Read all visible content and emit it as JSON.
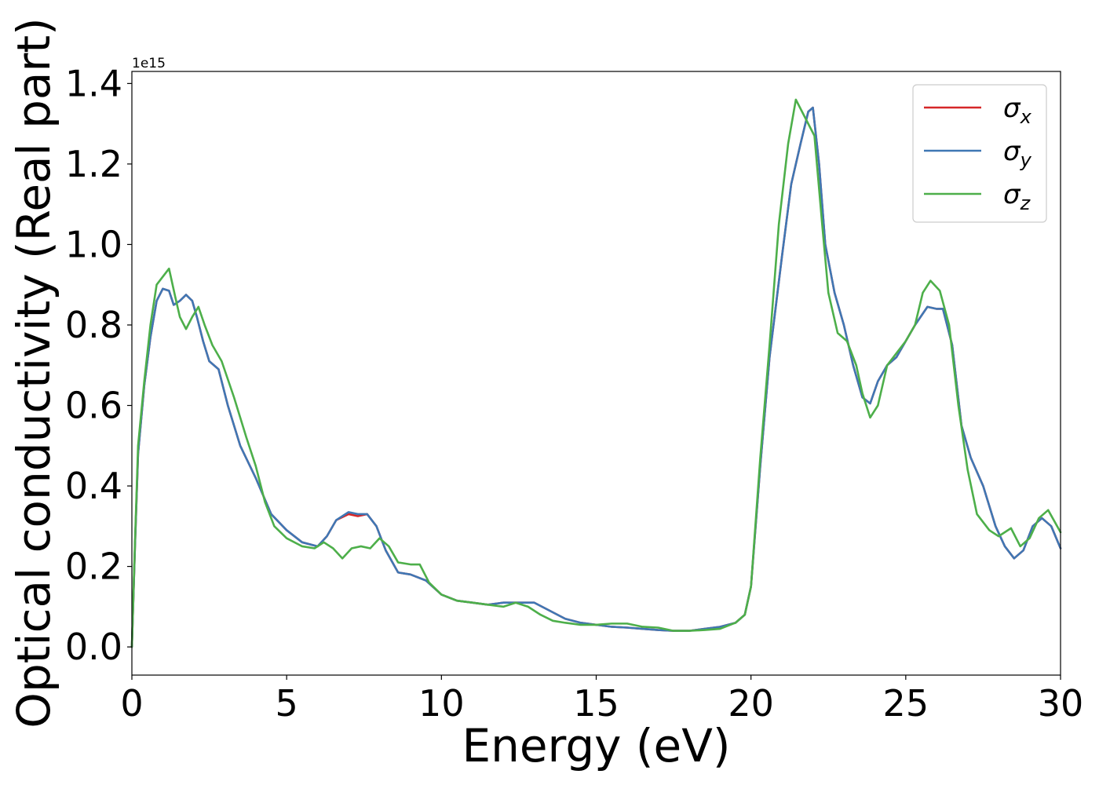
{
  "chart_data": {
    "type": "line",
    "title": "",
    "xlabel": "Energy (eV)",
    "ylabel": "Optical conductivity (Real part)",
    "y_offset_label": "1e15",
    "xlim": [
      0,
      30
    ],
    "ylim": [
      -0.07,
      1.43
    ],
    "x_ticks": [
      0,
      5,
      10,
      15,
      20,
      25,
      30
    ],
    "x_tick_labels": [
      "0",
      "5",
      "10",
      "15",
      "20",
      "25",
      "30"
    ],
    "y_ticks": [
      0.0,
      0.2,
      0.4,
      0.6,
      0.8,
      1.0,
      1.2,
      1.4
    ],
    "y_tick_labels": [
      "0.0",
      "0.2",
      "0.4",
      "0.6",
      "0.8",
      "1.0",
      "1.2",
      "1.4"
    ],
    "grid": false,
    "legend_position": "top-right",
    "series": [
      {
        "name": "σx",
        "symbol": "σ",
        "subscript": "x",
        "color": "#d62728",
        "x": [
          0,
          0.1,
          0.2,
          0.4,
          0.6,
          0.8,
          1.0,
          1.2,
          1.35,
          1.55,
          1.75,
          1.95,
          2.1,
          2.3,
          2.5,
          2.8,
          3.1,
          3.5,
          4.0,
          4.5,
          5.0,
          5.5,
          6.0,
          6.3,
          6.6,
          7.0,
          7.3,
          7.6,
          7.9,
          8.2,
          8.6,
          9.0,
          9.5,
          10.0,
          10.5,
          11.0,
          11.5,
          12.0,
          12.5,
          13.0,
          13.5,
          14.0,
          14.5,
          15.0,
          15.5,
          16.0,
          16.5,
          17.0,
          17.5,
          18.0,
          18.5,
          19.0,
          19.5,
          19.8,
          20.0,
          20.3,
          20.6,
          21.0,
          21.3,
          21.6,
          21.85,
          22.0,
          22.2,
          22.4,
          22.7,
          23.0,
          23.3,
          23.6,
          23.85,
          24.1,
          24.4,
          24.7,
          25.0,
          25.3,
          25.7,
          26.0,
          26.2,
          26.5,
          26.8,
          27.1,
          27.5,
          27.9,
          28.2,
          28.5,
          28.8,
          29.1,
          29.4,
          29.7,
          30.0
        ],
        "values": [
          0.0,
          0.25,
          0.48,
          0.65,
          0.77,
          0.86,
          0.89,
          0.885,
          0.85,
          0.86,
          0.875,
          0.86,
          0.82,
          0.76,
          0.71,
          0.69,
          0.6,
          0.5,
          0.42,
          0.33,
          0.29,
          0.26,
          0.25,
          0.275,
          0.315,
          0.33,
          0.325,
          0.33,
          0.3,
          0.24,
          0.185,
          0.18,
          0.165,
          0.13,
          0.115,
          0.11,
          0.105,
          0.11,
          0.11,
          0.11,
          0.09,
          0.07,
          0.06,
          0.055,
          0.05,
          0.048,
          0.045,
          0.042,
          0.04,
          0.04,
          0.045,
          0.05,
          0.06,
          0.08,
          0.15,
          0.45,
          0.72,
          0.97,
          1.15,
          1.25,
          1.33,
          1.34,
          1.2,
          1.0,
          0.88,
          0.8,
          0.7,
          0.62,
          0.605,
          0.66,
          0.7,
          0.72,
          0.76,
          0.8,
          0.845,
          0.84,
          0.84,
          0.75,
          0.55,
          0.47,
          0.4,
          0.3,
          0.25,
          0.22,
          0.24,
          0.3,
          0.32,
          0.3,
          0.245
        ]
      },
      {
        "name": "σy",
        "symbol": "σ",
        "subscript": "y",
        "color": "#3f77b4",
        "x": [
          0,
          0.1,
          0.2,
          0.4,
          0.6,
          0.8,
          1.0,
          1.2,
          1.35,
          1.55,
          1.75,
          1.95,
          2.1,
          2.3,
          2.5,
          2.8,
          3.1,
          3.5,
          4.0,
          4.5,
          5.0,
          5.5,
          6.0,
          6.3,
          6.6,
          7.0,
          7.3,
          7.6,
          7.9,
          8.2,
          8.6,
          9.0,
          9.5,
          10.0,
          10.5,
          11.0,
          11.5,
          12.0,
          12.5,
          13.0,
          13.5,
          14.0,
          14.5,
          15.0,
          15.5,
          16.0,
          16.5,
          17.0,
          17.5,
          18.0,
          18.5,
          19.0,
          19.5,
          19.8,
          20.0,
          20.3,
          20.6,
          21.0,
          21.3,
          21.6,
          21.85,
          22.0,
          22.2,
          22.4,
          22.7,
          23.0,
          23.3,
          23.6,
          23.85,
          24.1,
          24.4,
          24.7,
          25.0,
          25.3,
          25.7,
          26.0,
          26.2,
          26.5,
          26.8,
          27.1,
          27.5,
          27.9,
          28.2,
          28.5,
          28.8,
          29.1,
          29.4,
          29.7,
          30.0
        ],
        "values": [
          0.0,
          0.25,
          0.48,
          0.65,
          0.77,
          0.86,
          0.89,
          0.885,
          0.85,
          0.86,
          0.875,
          0.86,
          0.82,
          0.76,
          0.71,
          0.69,
          0.6,
          0.5,
          0.42,
          0.33,
          0.29,
          0.26,
          0.25,
          0.275,
          0.315,
          0.335,
          0.33,
          0.33,
          0.3,
          0.24,
          0.185,
          0.18,
          0.165,
          0.13,
          0.115,
          0.11,
          0.105,
          0.11,
          0.11,
          0.11,
          0.09,
          0.07,
          0.06,
          0.055,
          0.05,
          0.048,
          0.045,
          0.042,
          0.04,
          0.04,
          0.045,
          0.05,
          0.06,
          0.08,
          0.15,
          0.45,
          0.72,
          0.97,
          1.15,
          1.25,
          1.33,
          1.34,
          1.2,
          1.0,
          0.88,
          0.8,
          0.7,
          0.62,
          0.605,
          0.66,
          0.7,
          0.72,
          0.76,
          0.8,
          0.845,
          0.84,
          0.84,
          0.75,
          0.55,
          0.47,
          0.4,
          0.3,
          0.25,
          0.22,
          0.24,
          0.3,
          0.32,
          0.3,
          0.245
        ]
      },
      {
        "name": "σz",
        "symbol": "σ",
        "subscript": "z",
        "color": "#4daf4a",
        "x": [
          0,
          0.1,
          0.2,
          0.4,
          0.6,
          0.8,
          1.0,
          1.2,
          1.4,
          1.55,
          1.75,
          1.95,
          2.15,
          2.35,
          2.6,
          2.9,
          3.3,
          3.7,
          4.0,
          4.3,
          4.6,
          5.0,
          5.5,
          5.9,
          6.2,
          6.5,
          6.8,
          7.1,
          7.4,
          7.7,
          8.0,
          8.3,
          8.6,
          9.0,
          9.3,
          9.6,
          10.0,
          10.5,
          11.0,
          11.5,
          12.0,
          12.4,
          12.8,
          13.2,
          13.6,
          14.0,
          14.5,
          15.0,
          15.5,
          16.0,
          16.5,
          17.0,
          17.5,
          18.0,
          18.5,
          19.0,
          19.5,
          19.8,
          20.0,
          20.3,
          20.6,
          20.9,
          21.2,
          21.45,
          21.65,
          21.85,
          22.05,
          22.3,
          22.5,
          22.8,
          23.1,
          23.4,
          23.6,
          23.85,
          24.1,
          24.4,
          24.7,
          25.0,
          25.3,
          25.55,
          25.8,
          26.1,
          26.4,
          26.7,
          27.0,
          27.3,
          27.7,
          28.0,
          28.4,
          28.7,
          29.0,
          29.3,
          29.6,
          30.0
        ],
        "values": [
          0.0,
          0.26,
          0.5,
          0.66,
          0.8,
          0.9,
          0.92,
          0.94,
          0.87,
          0.82,
          0.79,
          0.82,
          0.845,
          0.8,
          0.75,
          0.71,
          0.62,
          0.52,
          0.45,
          0.36,
          0.3,
          0.27,
          0.25,
          0.245,
          0.26,
          0.245,
          0.22,
          0.245,
          0.25,
          0.245,
          0.27,
          0.25,
          0.21,
          0.205,
          0.205,
          0.16,
          0.13,
          0.115,
          0.11,
          0.105,
          0.1,
          0.11,
          0.1,
          0.08,
          0.065,
          0.06,
          0.055,
          0.055,
          0.058,
          0.058,
          0.05,
          0.048,
          0.04,
          0.04,
          0.042,
          0.045,
          0.06,
          0.08,
          0.15,
          0.47,
          0.75,
          1.05,
          1.25,
          1.36,
          1.33,
          1.3,
          1.27,
          1.05,
          0.88,
          0.78,
          0.76,
          0.7,
          0.63,
          0.57,
          0.6,
          0.7,
          0.73,
          0.76,
          0.8,
          0.88,
          0.91,
          0.885,
          0.8,
          0.6,
          0.44,
          0.33,
          0.29,
          0.275,
          0.295,
          0.25,
          0.27,
          0.32,
          0.34,
          0.285
        ]
      }
    ]
  }
}
